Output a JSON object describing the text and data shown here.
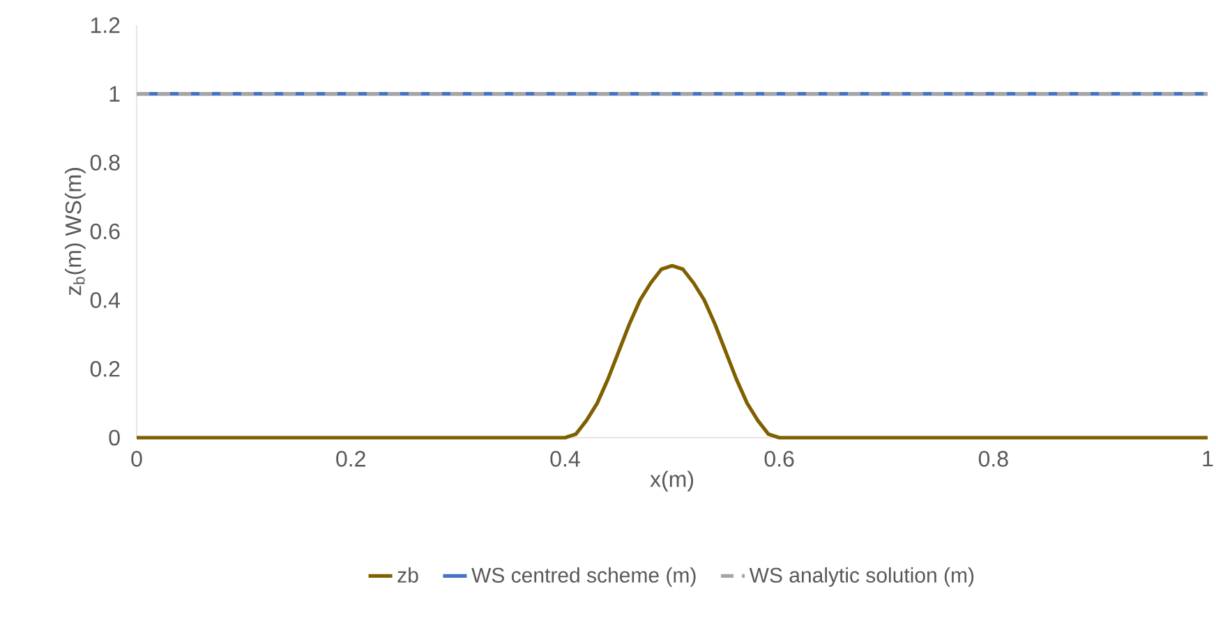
{
  "chart_data": {
    "type": "line",
    "xlabel": "x(m)",
    "ylabel": "z$_{b}$(m)   WS(m)",
    "xlim": [
      0,
      1
    ],
    "ylim": [
      0,
      1.2
    ],
    "xticks": [
      0,
      0.2,
      0.4,
      0.6,
      0.8,
      1
    ],
    "yticks": [
      0,
      0.2,
      0.4,
      0.6,
      0.8,
      1,
      1.2
    ],
    "grid": false,
    "legend": "bottom",
    "marker": "none",
    "series": [
      {
        "name": "zb",
        "color": "#7f6000",
        "line_style": "solid",
        "x": [
          0,
          0.4,
          0.41,
          0.42,
          0.43,
          0.44,
          0.45,
          0.46,
          0.47,
          0.48,
          0.49,
          0.5,
          0.51,
          0.52,
          0.53,
          0.54,
          0.55,
          0.56,
          0.57,
          0.58,
          0.59,
          0.6,
          1
        ],
        "values": [
          0,
          0,
          0.01,
          0.05,
          0.1,
          0.17,
          0.25,
          0.33,
          0.4,
          0.45,
          0.49,
          0.5,
          0.49,
          0.45,
          0.4,
          0.33,
          0.25,
          0.17,
          0.1,
          0.05,
          0.01,
          0,
          0
        ]
      },
      {
        "name": "WS centred scheme (m)",
        "color": "#4472c4",
        "line_style": "solid",
        "x": [
          0,
          1
        ],
        "values": [
          1,
          1
        ]
      },
      {
        "name": "WS analytic solution (m)",
        "color": "#a5a5a5",
        "line_style": "dashed",
        "x": [
          0,
          1
        ],
        "values": [
          1,
          1
        ]
      }
    ]
  }
}
